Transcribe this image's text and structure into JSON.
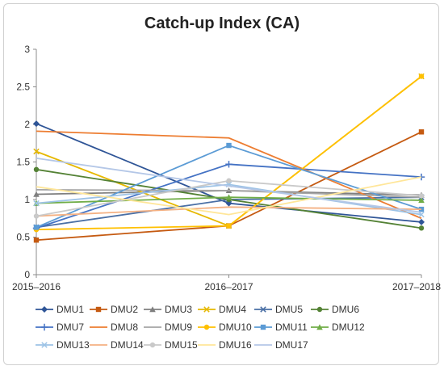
{
  "chart_data": {
    "type": "line",
    "title": "Catch-up Index (CA)",
    "xlabel": "",
    "ylabel": "",
    "categories": [
      "2015–2016",
      "2016–2017",
      "2017–2018"
    ],
    "ylim": [
      0,
      3
    ],
    "yticks": [
      "0",
      "0.5",
      "1",
      "1.5",
      "2",
      "2.5",
      "3"
    ],
    "grid": false,
    "legend_position": "bottom",
    "series": [
      {
        "name": "DMU1",
        "values": [
          2.01,
          0.95,
          0.7
        ],
        "color": "#2f5597",
        "marker": "diamond"
      },
      {
        "name": "DMU2",
        "values": [
          0.46,
          0.65,
          1.9
        ],
        "color": "#c55a11",
        "marker": "square"
      },
      {
        "name": "DMU3",
        "values": [
          1.07,
          1.12,
          1.06
        ],
        "color": "#7f7f7f",
        "marker": "triangle"
      },
      {
        "name": "DMU4",
        "values": [
          1.64,
          0.65,
          2.64
        ],
        "color": "#e6b800",
        "marker": "x"
      },
      {
        "name": "DMU5",
        "values": [
          0.63,
          1.0,
          1.03
        ],
        "color": "#4a6fa5",
        "marker": "x"
      },
      {
        "name": "DMU6",
        "values": [
          1.4,
          1.0,
          0.62
        ],
        "color": "#548235",
        "marker": "circle"
      },
      {
        "name": "DMU7",
        "values": [
          0.62,
          1.47,
          1.3
        ],
        "color": "#4472c4",
        "marker": "plus"
      },
      {
        "name": "DMU8",
        "values": [
          1.91,
          1.82,
          0.75
        ],
        "color": "#ed7d31",
        "marker": "none"
      },
      {
        "name": "DMU9",
        "values": [
          1.13,
          1.12,
          1.03
        ],
        "color": "#a5a5a5",
        "marker": "none"
      },
      {
        "name": "DMU10",
        "values": [
          0.6,
          0.65,
          2.64
        ],
        "color": "#ffc000",
        "marker": "circle"
      },
      {
        "name": "DMU11",
        "values": [
          0.63,
          1.72,
          0.87
        ],
        "color": "#5b9bd5",
        "marker": "square"
      },
      {
        "name": "DMU12",
        "values": [
          0.95,
          1.03,
          0.99
        ],
        "color": "#70ad47",
        "marker": "triangle"
      },
      {
        "name": "DMU13",
        "values": [
          0.95,
          1.2,
          0.8
        ],
        "color": "#9dc3e6",
        "marker": "x"
      },
      {
        "name": "DMU14",
        "values": [
          0.78,
          0.9,
          0.87
        ],
        "color": "#f4b183",
        "marker": "none"
      },
      {
        "name": "DMU15",
        "values": [
          0.78,
          1.25,
          1.05
        ],
        "color": "#c9c9c9",
        "marker": "circle"
      },
      {
        "name": "DMU16",
        "values": [
          1.17,
          0.8,
          1.3
        ],
        "color": "#ffe699",
        "marker": "none"
      },
      {
        "name": "DMU17",
        "values": [
          1.55,
          1.18,
          0.83
        ],
        "color": "#b4c7e7",
        "marker": "none"
      }
    ]
  }
}
